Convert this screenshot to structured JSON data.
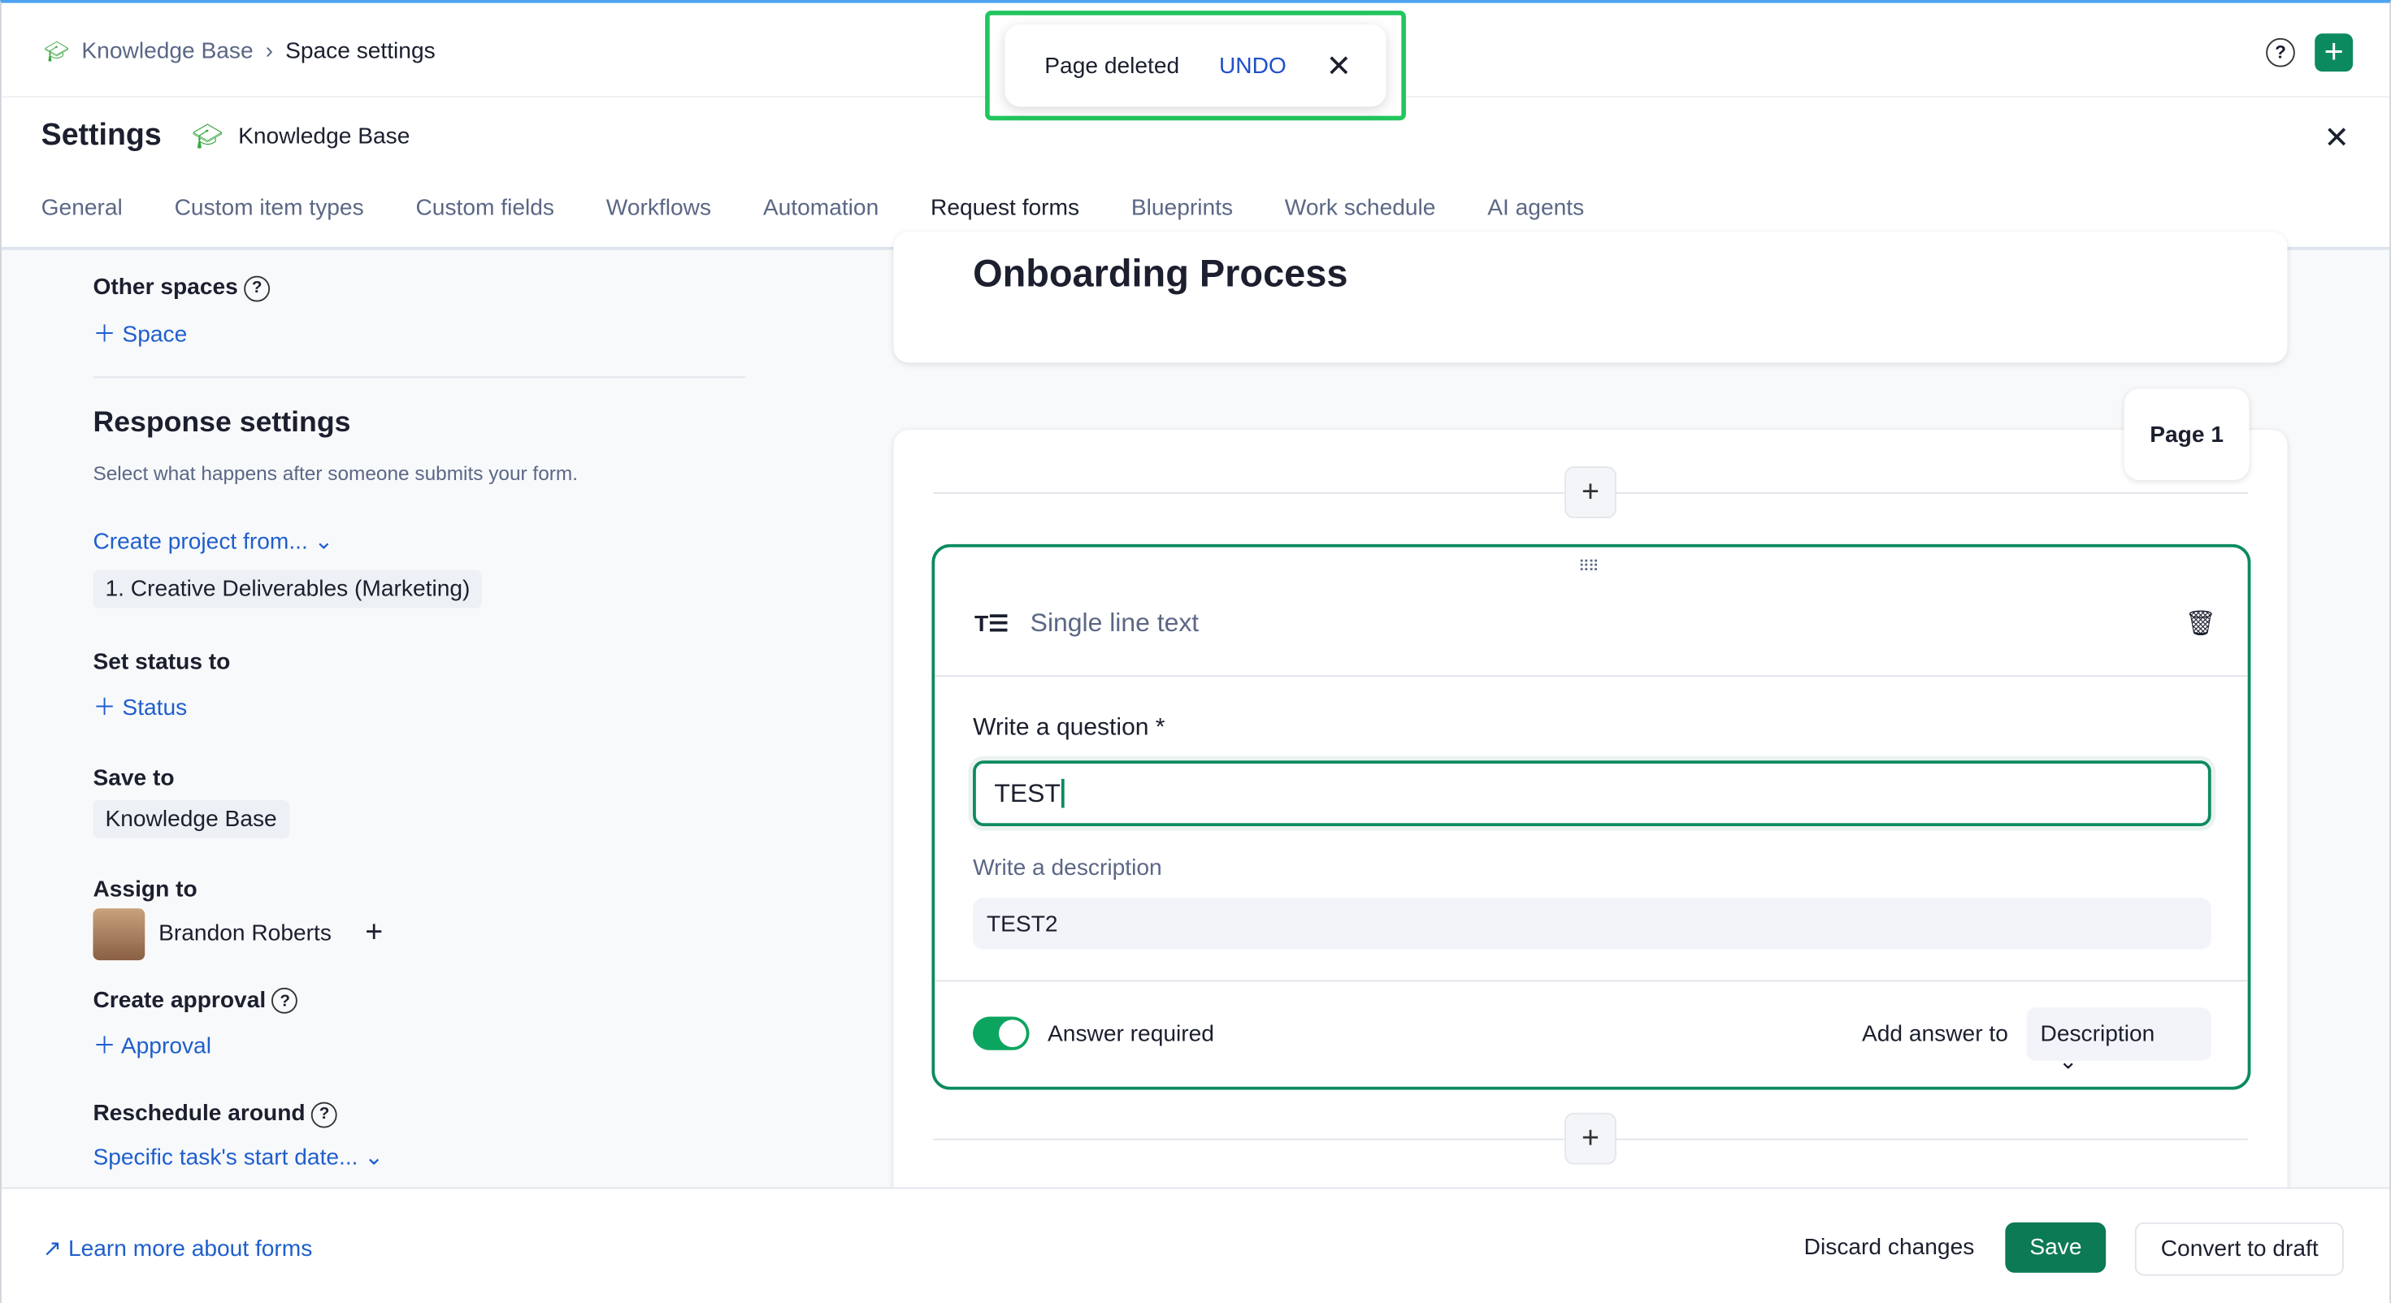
{
  "breadcrumb": {
    "root": "Knowledge Base",
    "current": "Space settings"
  },
  "toast": {
    "message": "Page deleted",
    "undo": "UNDO"
  },
  "header": {
    "title": "Settings",
    "space": "Knowledge Base"
  },
  "tabs": [
    {
      "label": "General"
    },
    {
      "label": "Custom item types"
    },
    {
      "label": "Custom fields"
    },
    {
      "label": "Workflows"
    },
    {
      "label": "Automation"
    },
    {
      "label": "Request forms",
      "active": true
    },
    {
      "label": "Blueprints"
    },
    {
      "label": "Work schedule"
    },
    {
      "label": "AI agents"
    }
  ],
  "left": {
    "other_spaces": "Other spaces",
    "add_space": "Space",
    "response_title": "Response settings",
    "response_desc": "Select what happens after someone submits your form.",
    "create_project": "Create project from...",
    "project_value": "1. Creative Deliverables (Marketing)",
    "set_status": "Set status to",
    "add_status": "Status",
    "save_to": "Save to",
    "save_value": "Knowledge Base",
    "assign_to": "Assign to",
    "assignee": "Brandon Roberts",
    "create_approval": "Create approval",
    "add_approval": "Approval",
    "reschedule": "Reschedule around",
    "reschedule_value": "Specific task's start date..."
  },
  "form": {
    "title": "Onboarding Process",
    "page_label": "Page 1",
    "field_type": "Single line text",
    "question_label": "Write a question *",
    "question_value": "TEST",
    "description_label": "Write a description",
    "description_value": "TEST2",
    "answer_required": "Answer required",
    "answer_required_on": true,
    "add_answer_to": "Add answer to",
    "add_answer_value": "Description"
  },
  "footer": {
    "learn_more": "Learn more about forms",
    "discard": "Discard changes",
    "save": "Save",
    "convert": "Convert to draft"
  },
  "colors": {
    "accent": "#0c8a5f",
    "link": "#1f5fcc",
    "toast_border": "#22c55e"
  }
}
